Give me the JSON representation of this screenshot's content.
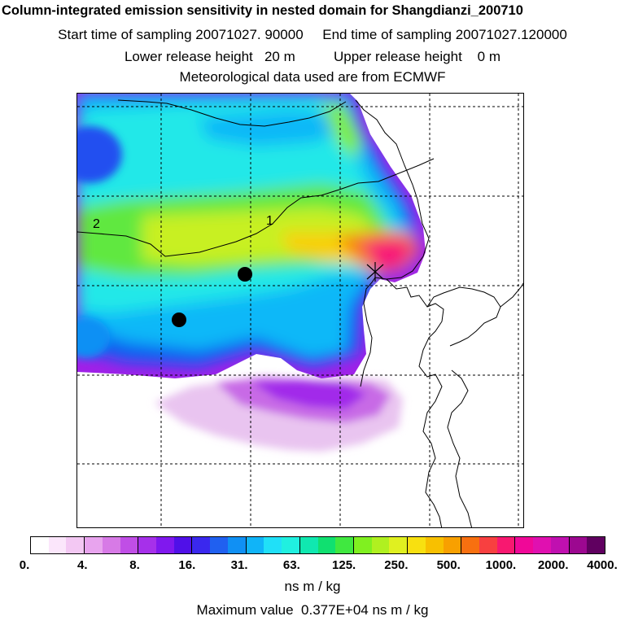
{
  "header": {
    "title": "Column-integrated emission sensitivity in nested domain for Shangdianzi_200710",
    "sampling_line": "Start time of sampling 20071027. 90000     End time of sampling 20071027.120000",
    "release_line": "Lower release height   20 m          Upper release height    0 m",
    "met_line": "Meteorological data used are from ECMWF"
  },
  "map": {
    "contour_labels": [
      "2",
      "1"
    ],
    "markers": [
      "release-site-marker",
      "receptor-dot",
      "receptor-dot"
    ],
    "colors": {
      "land_boundary": "#000000",
      "grid": "#000000",
      "marker": "#000000"
    }
  },
  "colorbar": {
    "colors": [
      "#ffffff",
      "#fbe6fb",
      "#f3c8f3",
      "#e8a4ee",
      "#d77ae6",
      "#c04ee6",
      "#a630ea",
      "#8018ee",
      "#5010e8",
      "#3a28ee",
      "#2060f0",
      "#1090f4",
      "#10b4f8",
      "#20e0f8",
      "#20f0e0",
      "#10e8b0",
      "#10e070",
      "#40e840",
      "#80f020",
      "#b0f020",
      "#e0f020",
      "#f8e010",
      "#f8c000",
      "#f8a000",
      "#f87010",
      "#f84040",
      "#f81870",
      "#f00898",
      "#e010b0",
      "#c010b0",
      "#9c0890",
      "#600060"
    ],
    "tick_labels": [
      "0.",
      "4.",
      "8.",
      "16.",
      "31.",
      "63.",
      "125.",
      "250.",
      "500.",
      "1000.",
      "2000.",
      "4000."
    ],
    "unit": "ns m / kg"
  },
  "footer": {
    "max_value": "Maximum value  0.377E+04 ns m / kg"
  }
}
